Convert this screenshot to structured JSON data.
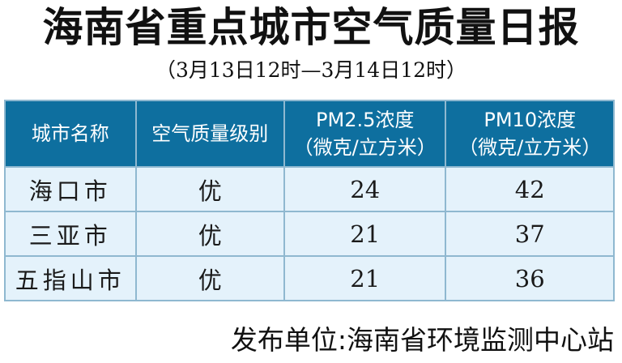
{
  "title": "海南省重点城市空气质量日报",
  "subtitle": "（3月13日12时—3月14日12时）",
  "table": {
    "headers": [
      {
        "line1": "城市名称",
        "line2": ""
      },
      {
        "line1": "空气质量级别",
        "line2": ""
      },
      {
        "line1": "PM2.5浓度",
        "line2": "（微克/立方米）"
      },
      {
        "line1": "PM10浓度",
        "line2": "（微克/立方米）"
      }
    ],
    "rows": [
      {
        "city": "海口市",
        "level": "优",
        "pm25": "24",
        "pm10": "42"
      },
      {
        "city": "三亚市",
        "level": "优",
        "pm25": "21",
        "pm10": "37"
      },
      {
        "city": "五指山市",
        "level": "优",
        "pm25": "21",
        "pm10": "36"
      }
    ]
  },
  "footer": "发布单位:海南省环境监测中心站",
  "colors": {
    "header_bg": "#0e6f9f",
    "row_bg": "#e4f2fb",
    "border": "#8fb8d0"
  }
}
